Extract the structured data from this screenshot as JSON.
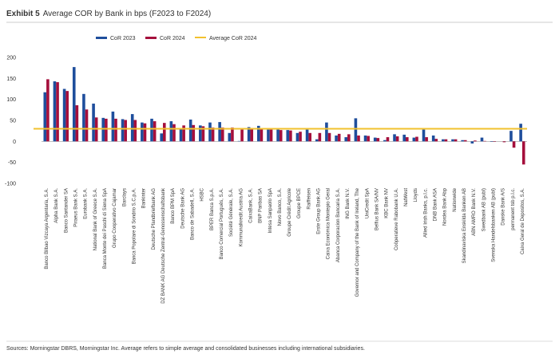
{
  "chart_data": {
    "type": "bar",
    "exhibit": "Exhibit 5",
    "title": "Average COR by Bank in bps (F2023 to F2024)",
    "source": "Sources: Morningstar DBRS, Morningstar Inc. Average refers to simple average and consolidated businesses including international subsidiaries.",
    "categories": [
      "Banco Bilbao Vizcaya Argentaria, S.A.",
      "Alpha Bank S.A.",
      "Banco Santander SA",
      "Piraeus Bank S.A.",
      "Eurobank S.A.",
      "National Bank of Greece S.A.",
      "Banca Monte dei Paschi di Siena SpA",
      "Grupo Cooperativo Cajamar",
      "Barclays",
      "Banca Popolare di Sondrio S.C.p.A.",
      "Bankinter",
      "Deutsche Pfandbriefbank AG",
      "DZ BANK AG Deutsche Zentral-Genossenschaftsbank",
      "Banco BPM SpA",
      "Deutsche Bank AG",
      "Banco de Sabadell, S.A.",
      "HSBC",
      "BPER Banca S.p.A.",
      "Banco Comercial Português, S.A.",
      "Société Générale, S.A.",
      "Kommunalkredit Austria AG",
      "CaixaBank, S.A.",
      "BNP Paribas SA",
      "Intesa Sanpaolo SpA",
      "Novo Banco, S.A.",
      "Groupe Crédit Agricole",
      "Groupe BPCE",
      "Raiffeisen",
      "Erste Group Bank AG",
      "Caixa Económica Montepio Geral",
      "Abanca Corporacion Bancaria S.A.",
      "ING Bank N.V.",
      "Governor and Company of the Bank of Ireland, The",
      "UniCredit SpA",
      "Belfius Bank SA/NV",
      "KBC Bank NV",
      "Coöperatieve Rabobank U.A.",
      "NatWest",
      "Lloyds",
      "Allied Irish Banks, p.l.c.",
      "DNB Bank ASA",
      "Nordea Bank Abp",
      "Nationwide",
      "Skandinaviska Enskilda Banken AB",
      "ABN AMRO Bank N.V.",
      "Swedbank AB (publ)",
      "Svenska Handelsbanken AB (publ)",
      "Danske Bank A/S",
      "permanent tsb p.l.c.",
      "Caixa Geral de Depositos, S.A."
    ],
    "series": [
      {
        "name": "CoR 2023",
        "color": "#1f4e9c",
        "values": [
          117,
          143,
          125,
          177,
          113,
          90,
          56,
          71,
          53,
          65,
          45,
          54,
          19,
          48,
          30,
          52,
          38,
          45,
          46,
          20,
          1,
          34,
          37,
          28,
          28,
          27,
          20,
          28,
          5,
          45,
          14,
          10,
          55,
          14,
          9,
          3,
          17,
          16,
          9,
          28,
          14,
          5,
          5,
          3,
          -5,
          9,
          -1,
          0,
          25,
          42
        ]
      },
      {
        "name": "CoR 2024",
        "color": "#a50f3c",
        "values": [
          148,
          141,
          120,
          86,
          76,
          57,
          54,
          54,
          51,
          51,
          43,
          48,
          44,
          41,
          38,
          39,
          36,
          33,
          33,
          33,
          28,
          32,
          30,
          28,
          27,
          26,
          23,
          20,
          20,
          20,
          18,
          17,
          14,
          13,
          8,
          10,
          12,
          10,
          11,
          10,
          6,
          5,
          5,
          3,
          2,
          1,
          -1,
          -2,
          -15,
          -55
        ]
      }
    ],
    "average": {
      "name": "Average CoR 2024",
      "color": "#f2c12e",
      "value": 30
    },
    "ylim": [
      -100,
      200
    ],
    "yticks": [
      -100,
      -50,
      0,
      50,
      100,
      150,
      200
    ],
    "grid": false
  }
}
